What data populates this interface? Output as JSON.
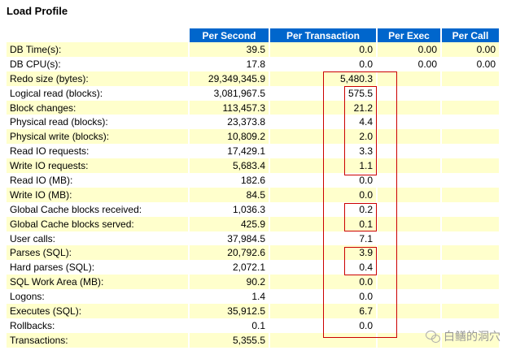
{
  "title": "Load Profile",
  "columns": {
    "per_second": "Per Second",
    "per_transaction": "Per Transaction",
    "per_exec": "Per Exec",
    "per_call": "Per Call"
  },
  "rows": [
    {
      "name": "DB Time(s):",
      "per_second": "39.5",
      "per_transaction": "0.0",
      "per_exec": "0.00",
      "per_call": "0.00"
    },
    {
      "name": "DB CPU(s):",
      "per_second": "17.8",
      "per_transaction": "0.0",
      "per_exec": "0.00",
      "per_call": "0.00"
    },
    {
      "name": "Redo size (bytes):",
      "per_second": "29,349,345.9",
      "per_transaction": "5,480.3",
      "per_exec": "",
      "per_call": ""
    },
    {
      "name": "Logical read (blocks):",
      "per_second": "3,081,967.5",
      "per_transaction": "575.5",
      "per_exec": "",
      "per_call": ""
    },
    {
      "name": "Block changes:",
      "per_second": "113,457.3",
      "per_transaction": "21.2",
      "per_exec": "",
      "per_call": ""
    },
    {
      "name": "Physical read (blocks):",
      "per_second": "23,373.8",
      "per_transaction": "4.4",
      "per_exec": "",
      "per_call": ""
    },
    {
      "name": "Physical write (blocks):",
      "per_second": "10,809.2",
      "per_transaction": "2.0",
      "per_exec": "",
      "per_call": ""
    },
    {
      "name": "Read IO requests:",
      "per_second": "17,429.1",
      "per_transaction": "3.3",
      "per_exec": "",
      "per_call": ""
    },
    {
      "name": "Write IO requests:",
      "per_second": "5,683.4",
      "per_transaction": "1.1",
      "per_exec": "",
      "per_call": ""
    },
    {
      "name": "Read IO (MB):",
      "per_second": "182.6",
      "per_transaction": "0.0",
      "per_exec": "",
      "per_call": ""
    },
    {
      "name": "Write IO (MB):",
      "per_second": "84.5",
      "per_transaction": "0.0",
      "per_exec": "",
      "per_call": ""
    },
    {
      "name": "Global Cache blocks received:",
      "per_second": "1,036.3",
      "per_transaction": "0.2",
      "per_exec": "",
      "per_call": ""
    },
    {
      "name": "Global Cache blocks served:",
      "per_second": "425.9",
      "per_transaction": "0.1",
      "per_exec": "",
      "per_call": ""
    },
    {
      "name": "User calls:",
      "per_second": "37,984.5",
      "per_transaction": "7.1",
      "per_exec": "",
      "per_call": ""
    },
    {
      "name": "Parses (SQL):",
      "per_second": "20,792.6",
      "per_transaction": "3.9",
      "per_exec": "",
      "per_call": ""
    },
    {
      "name": "Hard parses (SQL):",
      "per_second": "2,072.1",
      "per_transaction": "0.4",
      "per_exec": "",
      "per_call": ""
    },
    {
      "name": "SQL Work Area (MB):",
      "per_second": "90.2",
      "per_transaction": "0.0",
      "per_exec": "",
      "per_call": ""
    },
    {
      "name": "Logons:",
      "per_second": "1.4",
      "per_transaction": "0.0",
      "per_exec": "",
      "per_call": ""
    },
    {
      "name": "Executes (SQL):",
      "per_second": "35,912.5",
      "per_transaction": "6.7",
      "per_exec": "",
      "per_call": ""
    },
    {
      "name": "Rollbacks:",
      "per_second": "0.1",
      "per_transaction": "0.0",
      "per_exec": "",
      "per_call": ""
    },
    {
      "name": "Transactions:",
      "per_second": "5,355.5",
      "per_transaction": "",
      "per_exec": "",
      "per_call": ""
    }
  ],
  "watermark": "白鳝的洞穴",
  "colors": {
    "header_bg": "#0066cc",
    "header_text": "#ffffff",
    "row_highlight": "#ffffcc",
    "annotation_box": "#cc0000"
  }
}
